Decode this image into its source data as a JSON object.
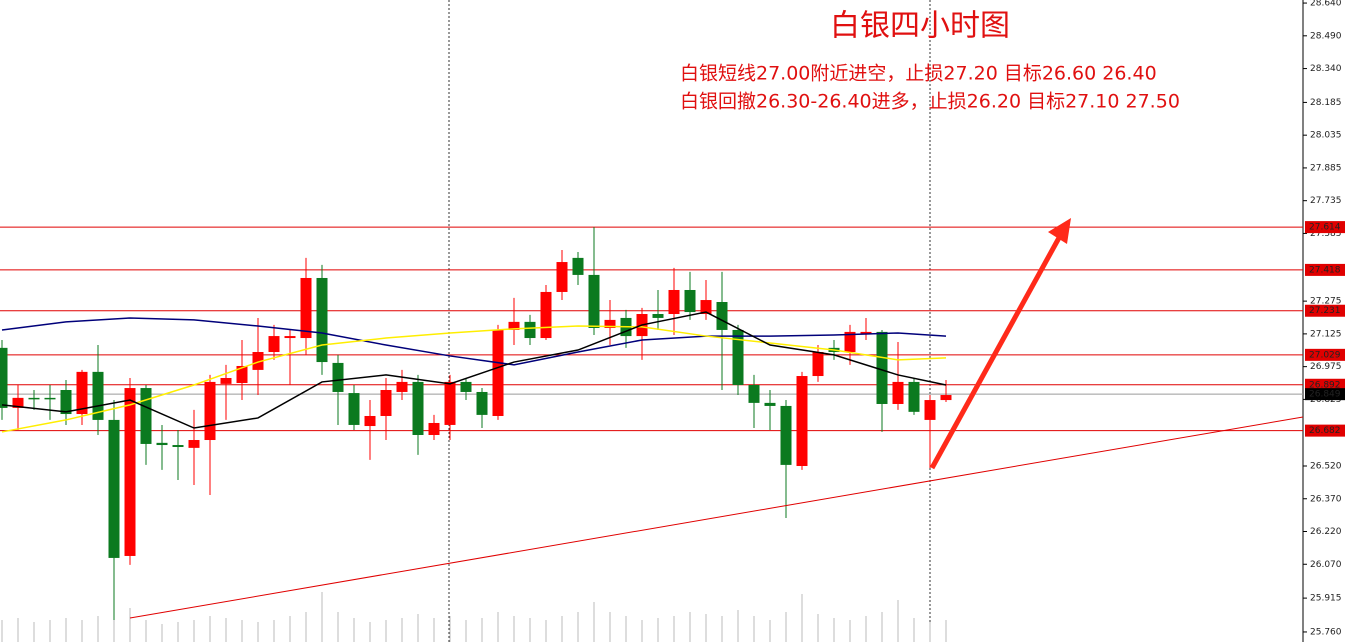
{
  "chart_data": {
    "type": "candlestick",
    "title": "白银四小时图",
    "annotations": [
      "白银短线27.00附近进空，止损27.20 目标26.60  26.40",
      "白银回撤26.30-26.40进多，止损26.20  目标27.10  27.50"
    ],
    "up_color": "#ff0000",
    "down_color": "#0b7a1f",
    "open": [
      27.061,
      26.786,
      26.832,
      26.832,
      26.868,
      26.758,
      26.951,
      26.731,
      26.108,
      26.877,
      26.626,
      26.616,
      26.603,
      26.639,
      26.896,
      26.9,
      26.96,
      27.042,
      27.106,
      27.106,
      27.381,
      26.992,
      26.854,
      26.703,
      26.749,
      26.859,
      26.905,
      26.662,
      26.708,
      26.905,
      26.859,
      26.749,
      27.143,
      27.18,
      27.106,
      27.317,
      27.473,
      27.395,
      27.152,
      27.198,
      27.115,
      27.216,
      27.216,
      27.326,
      27.216,
      27.271,
      27.143,
      26.891,
      26.809,
      26.795,
      26.52,
      26.932,
      27.061,
      27.042,
      27.125,
      27.134,
      26.804,
      26.905,
      26.731,
      26.822
    ],
    "high": [
      27.097,
      26.891,
      26.868,
      26.891,
      26.914,
      26.96,
      27.074,
      26.822,
      26.923,
      26.891,
      26.708,
      26.685,
      26.777,
      26.937,
      26.983,
      27.097,
      27.198,
      27.166,
      27.143,
      27.473,
      27.441,
      27.029,
      26.891,
      26.822,
      26.923,
      26.96,
      26.937,
      26.754,
      26.937,
      26.923,
      26.877,
      27.166,
      27.29,
      27.212,
      27.349,
      27.509,
      27.5,
      27.614,
      27.28,
      27.235,
      27.244,
      27.326,
      27.427,
      27.409,
      27.372,
      27.409,
      27.166,
      26.937,
      26.868,
      26.822,
      26.951,
      27.074,
      27.097,
      27.166,
      27.198,
      27.143,
      27.088,
      26.923,
      26.845,
      26.914
    ],
    "low": [
      26.731,
      26.685,
      26.777,
      26.731,
      26.708,
      26.708,
      26.662,
      25.815,
      26.067,
      26.525,
      26.502,
      26.456,
      26.433,
      26.387,
      26.731,
      26.822,
      26.845,
      27.006,
      26.891,
      27.029,
      26.937,
      26.708,
      26.685,
      26.548,
      26.639,
      26.822,
      26.571,
      26.639,
      26.639,
      26.822,
      26.694,
      26.731,
      27.074,
      27.074,
      27.097,
      27.28,
      27.349,
      27.12,
      27.074,
      27.061,
      27.006,
      27.143,
      27.12,
      27.189,
      27.189,
      26.868,
      26.845,
      26.694,
      26.685,
      26.282,
      26.502,
      26.905,
      27.006,
      26.983,
      27.097,
      26.676,
      26.777,
      26.754,
      26.511,
      26.813
    ],
    "close": [
      26.786,
      26.832,
      26.832,
      26.832,
      26.758,
      26.951,
      26.731,
      26.099,
      26.877,
      26.621,
      26.616,
      26.607,
      26.639,
      26.905,
      26.923,
      26.978,
      27.042,
      27.115,
      27.115,
      27.381,
      26.996,
      26.859,
      26.708,
      26.749,
      26.868,
      26.905,
      26.662,
      26.717,
      26.905,
      26.859,
      26.754,
      27.143,
      27.18,
      27.106,
      27.317,
      27.454,
      27.395,
      27.152,
      27.189,
      27.115,
      27.216,
      27.198,
      27.326,
      27.225,
      27.28,
      27.143,
      26.891,
      26.809,
      26.795,
      26.525,
      26.932,
      27.042,
      27.042,
      27.134,
      27.134,
      26.804,
      26.905,
      26.768,
      26.822,
      26.845
    ],
    "volume": [
      22,
      24,
      20,
      22,
      24,
      22,
      26,
      40,
      34,
      22,
      18,
      20,
      22,
      26,
      24,
      22,
      20,
      22,
      26,
      30,
      50,
      30,
      24,
      20,
      22,
      24,
      28,
      24,
      26,
      22,
      24,
      30,
      26,
      24,
      22,
      26,
      30,
      40,
      30,
      26,
      22,
      24,
      26,
      30,
      28,
      26,
      32,
      26,
      22,
      30,
      48,
      28,
      24,
      22,
      26,
      30,
      42,
      24,
      20,
      22
    ],
    "volume_ylim": [
      0,
      100
    ],
    "ma_x": [
      0,
      4,
      8,
      12,
      16,
      20,
      24,
      28,
      32,
      36,
      40,
      44,
      48,
      52,
      56,
      59
    ],
    "ma_series": [
      {
        "color": "#00007a",
        "values": [
          27.143,
          27.18,
          27.198,
          27.189,
          27.161,
          27.129,
          27.074,
          27.024,
          26.983,
          27.042,
          27.097,
          27.115,
          27.115,
          27.12,
          27.129,
          27.115
        ]
      },
      {
        "color": "#ffee00",
        "values": [
          26.676,
          26.731,
          26.8,
          26.891,
          26.996,
          27.074,
          27.106,
          27.129,
          27.148,
          27.161,
          27.157,
          27.115,
          27.083,
          27.051,
          27.006,
          27.015
        ]
      },
      {
        "color": "#000000",
        "values": [
          26.8,
          26.768,
          26.822,
          26.694,
          26.74,
          26.905,
          26.937,
          26.896,
          26.996,
          27.051,
          27.166,
          27.225,
          27.074,
          27.029,
          26.937,
          26.891
        ]
      }
    ],
    "levels": [
      27.614,
      27.418,
      27.231,
      27.029,
      26.892,
      26.682
    ],
    "level_color": "#e00000",
    "current_price": 26.849,
    "ylim": [
      25.714,
      28.654
    ],
    "yticks": [
      {
        "value": 28.64,
        "label": "28.640"
      },
      {
        "value": 28.49,
        "label": "28.490"
      },
      {
        "value": 28.34,
        "label": "28.340"
      },
      28.185,
      28.035,
      27.885,
      27.735,
      27.585,
      27.275,
      27.125,
      26.975,
      26.825,
      {
        "value": 26.52,
        "label": "26.520"
      },
      {
        "value": 26.37,
        "label": "26.370"
      },
      {
        "value": 26.22,
        "label": "26.220"
      },
      {
        "value": 26.07,
        "label": "26.070"
      },
      25.915,
      {
        "value": 25.76,
        "label": "25.760"
      }
    ]
  }
}
